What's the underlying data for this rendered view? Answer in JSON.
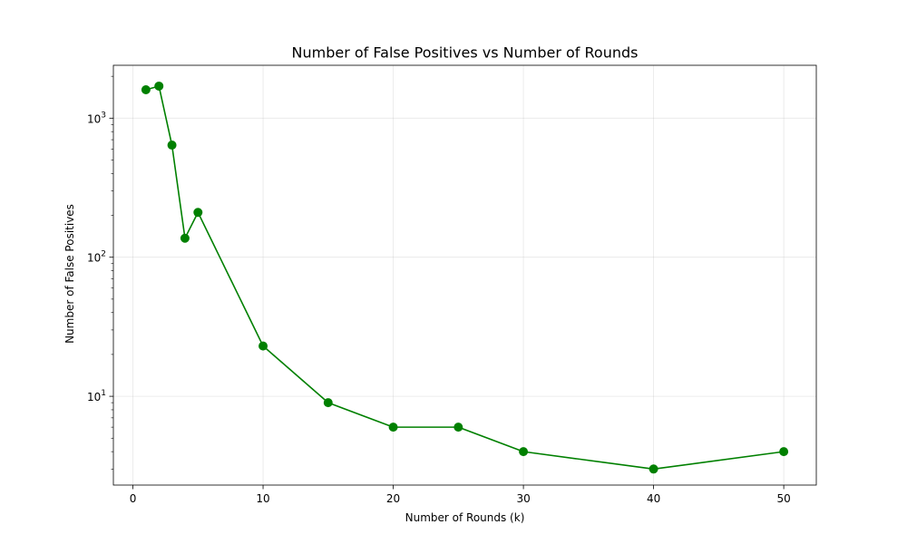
{
  "chart_data": {
    "type": "line",
    "title": "Number of False Positives vs Number of Rounds",
    "xlabel": "Number of Rounds (k)",
    "ylabel": "Number of False Positives",
    "x": [
      1,
      2,
      3,
      4,
      5,
      10,
      15,
      20,
      25,
      30,
      40,
      50
    ],
    "series": [
      {
        "values": [
          1600,
          1700,
          640,
          137,
          210,
          23,
          9,
          6,
          6,
          4,
          3,
          4
        ],
        "color": "#008000"
      }
    ],
    "xlim": [
      -1.5,
      52.5
    ],
    "ylim": [
      2.3,
      2400
    ],
    "yscale": "log",
    "xticks": [
      0,
      10,
      20,
      30,
      40,
      50
    ],
    "yticks": [
      {
        "value": 10,
        "base": "10",
        "exp": "1"
      },
      {
        "value": 100,
        "base": "10",
        "exp": "2"
      },
      {
        "value": 1000,
        "base": "10",
        "exp": "3"
      }
    ],
    "grid": true,
    "marker": "circle"
  }
}
